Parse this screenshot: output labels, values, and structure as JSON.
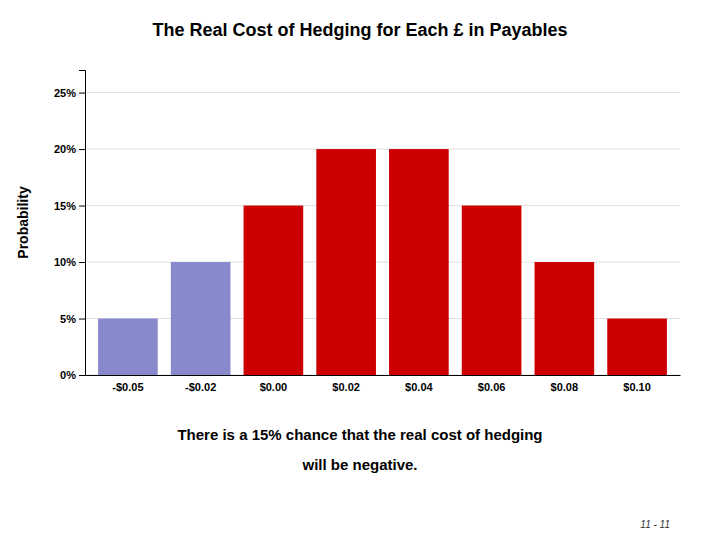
{
  "chart_data": {
    "type": "bar",
    "title": "The Real Cost of Hedging for Each £ in Payables",
    "subtitle": [
      "There is a 15% chance that the real cost of hedging",
      "will be negative."
    ],
    "annotations": [
      "11 - 11"
    ],
    "ylabel": "Probability",
    "categories": [
      "-$0.05",
      "-$0.02",
      "$0.00",
      "$0.02",
      "$0.04",
      "$0.06",
      "$0.08",
      "$0.10"
    ],
    "values": [
      5,
      10,
      15,
      20,
      20,
      15,
      10,
      5
    ],
    "colors": [
      "#8888cc",
      "#8888cc",
      "#cc0000",
      "#cc0000",
      "#cc0000",
      "#cc0000",
      "#cc0000",
      "#cc0000"
    ],
    "ylim": [
      0,
      27
    ],
    "yticks": [
      {
        "value": 0,
        "label": "0%"
      },
      {
        "value": 5,
        "label": "5%"
      },
      {
        "value": 10,
        "label": "10%"
      },
      {
        "value": 15,
        "label": "15%"
      },
      {
        "value": 20,
        "label": "20%"
      },
      {
        "value": 25,
        "label": "25%"
      }
    ],
    "grid": true
  }
}
